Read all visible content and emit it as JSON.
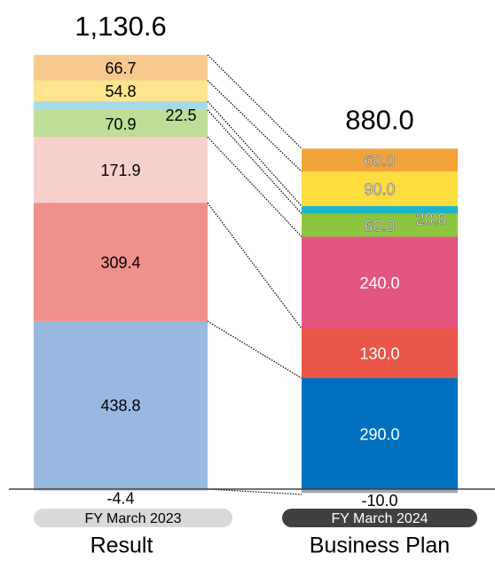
{
  "chart_data": {
    "type": "bar",
    "stacked": true,
    "categories": [
      "FY March 2023",
      "FY March 2024"
    ],
    "sublabels": [
      "Result",
      "Business Plan"
    ],
    "totals": [
      1130.6,
      880.0
    ],
    "total_labels": [
      "1,130.6",
      "880.0"
    ],
    "series": [
      {
        "colors": [
          "#98b9e0",
          "#0070c0"
        ],
        "values": [
          438.8,
          290.0
        ],
        "value_labels": [
          "438.8",
          "290.0"
        ]
      },
      {
        "colors": [
          "#f0908a",
          "#e8574a"
        ],
        "values": [
          309.4,
          130.0
        ],
        "value_labels": [
          "309.4",
          "130.0"
        ]
      },
      {
        "colors": [
          "#f9d1cc",
          "#e3567f"
        ],
        "values": [
          171.9,
          240.0
        ],
        "value_labels": [
          "171.9",
          "240.0"
        ]
      },
      {
        "colors": [
          "#bedd96",
          "#8cc63f"
        ],
        "values": [
          70.9,
          60.0
        ],
        "value_labels": [
          "70.9",
          "60.0"
        ]
      },
      {
        "colors": [
          "#a6d8e6",
          "#1db5c9"
        ],
        "values": [
          22.5,
          20.0
        ],
        "value_labels": [
          "22.5",
          "20.0"
        ]
      },
      {
        "colors": [
          "#fde48f",
          "#fedd3f"
        ],
        "values": [
          54.8,
          90.0
        ],
        "value_labels": [
          "54.8",
          "90.0"
        ]
      },
      {
        "colors": [
          "#f8c98e",
          "#f2a33a"
        ],
        "values": [
          66.7,
          60.0
        ],
        "value_labels": [
          "66.7",
          "60.0"
        ]
      },
      {
        "colors": [
          "#d9d9d9",
          "#a6a6a6"
        ],
        "values": [
          -4.4,
          -10.0
        ],
        "value_labels": [
          "-4.4",
          "-10.0"
        ]
      }
    ]
  }
}
